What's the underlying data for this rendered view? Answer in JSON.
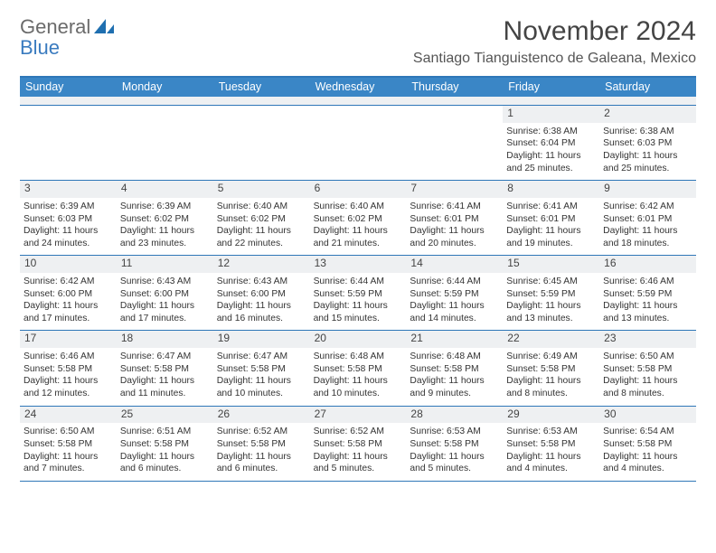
{
  "logo": {
    "word1": "General",
    "word2": "Blue"
  },
  "title": "November 2024",
  "location": "Santiago Tianguistenco de Galeana, Mexico",
  "weekdays": [
    "Sunday",
    "Monday",
    "Tuesday",
    "Wednesday",
    "Thursday",
    "Friday",
    "Saturday"
  ],
  "colors": {
    "header_bar": "#3a86c6",
    "header_rule": "#2f77b8",
    "daynum_bg": "#eef0f2",
    "text": "#333333",
    "logo_gray": "#6b6b6b",
    "logo_blue": "#3a7bbf"
  },
  "weeks": [
    [
      {
        "n": "",
        "sunrise": "",
        "sunset": "",
        "day": ""
      },
      {
        "n": "",
        "sunrise": "",
        "sunset": "",
        "day": ""
      },
      {
        "n": "",
        "sunrise": "",
        "sunset": "",
        "day": ""
      },
      {
        "n": "",
        "sunrise": "",
        "sunset": "",
        "day": ""
      },
      {
        "n": "",
        "sunrise": "",
        "sunset": "",
        "day": ""
      },
      {
        "n": "1",
        "sunrise": "Sunrise: 6:38 AM",
        "sunset": "Sunset: 6:04 PM",
        "day": "Daylight: 11 hours and 25 minutes."
      },
      {
        "n": "2",
        "sunrise": "Sunrise: 6:38 AM",
        "sunset": "Sunset: 6:03 PM",
        "day": "Daylight: 11 hours and 25 minutes."
      }
    ],
    [
      {
        "n": "3",
        "sunrise": "Sunrise: 6:39 AM",
        "sunset": "Sunset: 6:03 PM",
        "day": "Daylight: 11 hours and 24 minutes."
      },
      {
        "n": "4",
        "sunrise": "Sunrise: 6:39 AM",
        "sunset": "Sunset: 6:02 PM",
        "day": "Daylight: 11 hours and 23 minutes."
      },
      {
        "n": "5",
        "sunrise": "Sunrise: 6:40 AM",
        "sunset": "Sunset: 6:02 PM",
        "day": "Daylight: 11 hours and 22 minutes."
      },
      {
        "n": "6",
        "sunrise": "Sunrise: 6:40 AM",
        "sunset": "Sunset: 6:02 PM",
        "day": "Daylight: 11 hours and 21 minutes."
      },
      {
        "n": "7",
        "sunrise": "Sunrise: 6:41 AM",
        "sunset": "Sunset: 6:01 PM",
        "day": "Daylight: 11 hours and 20 minutes."
      },
      {
        "n": "8",
        "sunrise": "Sunrise: 6:41 AM",
        "sunset": "Sunset: 6:01 PM",
        "day": "Daylight: 11 hours and 19 minutes."
      },
      {
        "n": "9",
        "sunrise": "Sunrise: 6:42 AM",
        "sunset": "Sunset: 6:01 PM",
        "day": "Daylight: 11 hours and 18 minutes."
      }
    ],
    [
      {
        "n": "10",
        "sunrise": "Sunrise: 6:42 AM",
        "sunset": "Sunset: 6:00 PM",
        "day": "Daylight: 11 hours and 17 minutes."
      },
      {
        "n": "11",
        "sunrise": "Sunrise: 6:43 AM",
        "sunset": "Sunset: 6:00 PM",
        "day": "Daylight: 11 hours and 17 minutes."
      },
      {
        "n": "12",
        "sunrise": "Sunrise: 6:43 AM",
        "sunset": "Sunset: 6:00 PM",
        "day": "Daylight: 11 hours and 16 minutes."
      },
      {
        "n": "13",
        "sunrise": "Sunrise: 6:44 AM",
        "sunset": "Sunset: 5:59 PM",
        "day": "Daylight: 11 hours and 15 minutes."
      },
      {
        "n": "14",
        "sunrise": "Sunrise: 6:44 AM",
        "sunset": "Sunset: 5:59 PM",
        "day": "Daylight: 11 hours and 14 minutes."
      },
      {
        "n": "15",
        "sunrise": "Sunrise: 6:45 AM",
        "sunset": "Sunset: 5:59 PM",
        "day": "Daylight: 11 hours and 13 minutes."
      },
      {
        "n": "16",
        "sunrise": "Sunrise: 6:46 AM",
        "sunset": "Sunset: 5:59 PM",
        "day": "Daylight: 11 hours and 13 minutes."
      }
    ],
    [
      {
        "n": "17",
        "sunrise": "Sunrise: 6:46 AM",
        "sunset": "Sunset: 5:58 PM",
        "day": "Daylight: 11 hours and 12 minutes."
      },
      {
        "n": "18",
        "sunrise": "Sunrise: 6:47 AM",
        "sunset": "Sunset: 5:58 PM",
        "day": "Daylight: 11 hours and 11 minutes."
      },
      {
        "n": "19",
        "sunrise": "Sunrise: 6:47 AM",
        "sunset": "Sunset: 5:58 PM",
        "day": "Daylight: 11 hours and 10 minutes."
      },
      {
        "n": "20",
        "sunrise": "Sunrise: 6:48 AM",
        "sunset": "Sunset: 5:58 PM",
        "day": "Daylight: 11 hours and 10 minutes."
      },
      {
        "n": "21",
        "sunrise": "Sunrise: 6:48 AM",
        "sunset": "Sunset: 5:58 PM",
        "day": "Daylight: 11 hours and 9 minutes."
      },
      {
        "n": "22",
        "sunrise": "Sunrise: 6:49 AM",
        "sunset": "Sunset: 5:58 PM",
        "day": "Daylight: 11 hours and 8 minutes."
      },
      {
        "n": "23",
        "sunrise": "Sunrise: 6:50 AM",
        "sunset": "Sunset: 5:58 PM",
        "day": "Daylight: 11 hours and 8 minutes."
      }
    ],
    [
      {
        "n": "24",
        "sunrise": "Sunrise: 6:50 AM",
        "sunset": "Sunset: 5:58 PM",
        "day": "Daylight: 11 hours and 7 minutes."
      },
      {
        "n": "25",
        "sunrise": "Sunrise: 6:51 AM",
        "sunset": "Sunset: 5:58 PM",
        "day": "Daylight: 11 hours and 6 minutes."
      },
      {
        "n": "26",
        "sunrise": "Sunrise: 6:52 AM",
        "sunset": "Sunset: 5:58 PM",
        "day": "Daylight: 11 hours and 6 minutes."
      },
      {
        "n": "27",
        "sunrise": "Sunrise: 6:52 AM",
        "sunset": "Sunset: 5:58 PM",
        "day": "Daylight: 11 hours and 5 minutes."
      },
      {
        "n": "28",
        "sunrise": "Sunrise: 6:53 AM",
        "sunset": "Sunset: 5:58 PM",
        "day": "Daylight: 11 hours and 5 minutes."
      },
      {
        "n": "29",
        "sunrise": "Sunrise: 6:53 AM",
        "sunset": "Sunset: 5:58 PM",
        "day": "Daylight: 11 hours and 4 minutes."
      },
      {
        "n": "30",
        "sunrise": "Sunrise: 6:54 AM",
        "sunset": "Sunset: 5:58 PM",
        "day": "Daylight: 11 hours and 4 minutes."
      }
    ]
  ]
}
